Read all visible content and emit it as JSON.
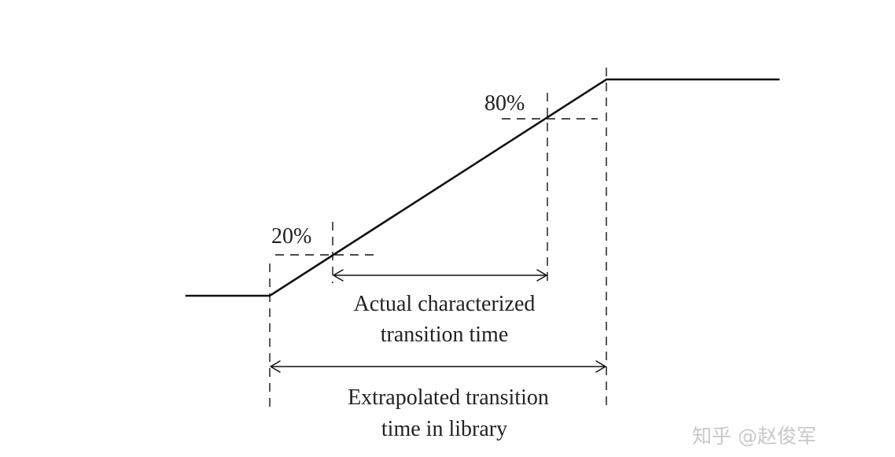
{
  "labels": {
    "pct_low": "20%",
    "pct_high": "80%",
    "actual_line1": "Actual characterized",
    "actual_line2": "transition time",
    "extrap_line1": "Extrapolated transition",
    "extrap_line2": "time in library"
  },
  "watermark": {
    "text": "知乎 @赵俊军"
  },
  "colors": {
    "line": "#111111",
    "text": "#222222",
    "watermark": "#c8c8c8"
  }
}
